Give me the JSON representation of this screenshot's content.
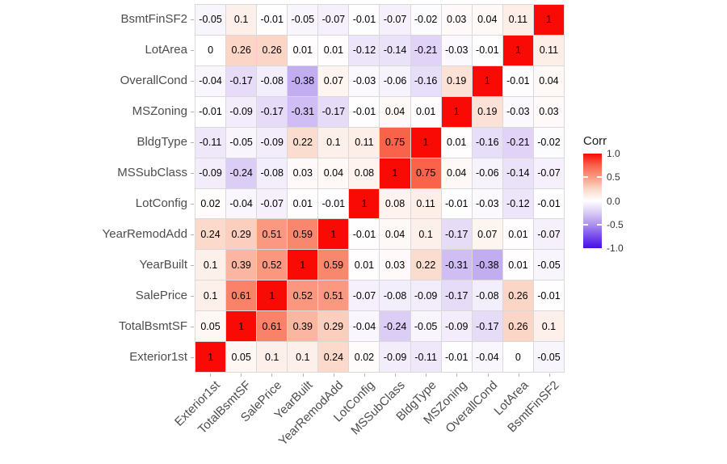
{
  "chart_data": {
    "type": "heatmap",
    "title": "",
    "legend": {
      "title": "Corr",
      "position": "right",
      "ticks": [
        "1.0",
        "0.5",
        "0.0",
        "-0.5",
        "-1.0"
      ],
      "min": -1.0,
      "max": 1.0,
      "color_high": "#fa0a05",
      "color_mid": "#ffffff",
      "color_low": "#470dea"
    },
    "x_categories": [
      "Exterior1st",
      "TotalBsmtSF",
      "SalePrice",
      "YearBuilt",
      "YearRemodAdd",
      "LotConfig",
      "MSSubClass",
      "BldgType",
      "MSZoning",
      "OverallCond",
      "LotArea",
      "BsmtFinSF2"
    ],
    "rows": [
      {
        "label": "BsmtFinSF2",
        "values": [
          "-0.05",
          "0.1",
          "-0.01",
          "-0.05",
          "-0.07",
          "-0.01",
          "-0.07",
          "-0.02",
          "0.03",
          "0.04",
          "0.11",
          "1"
        ]
      },
      {
        "label": "LotArea",
        "values": [
          "0",
          "0.26",
          "0.26",
          "0.01",
          "0.01",
          "-0.12",
          "-0.14",
          "-0.21",
          "-0.03",
          "-0.01",
          "1",
          "0.11"
        ]
      },
      {
        "label": "OverallCond",
        "values": [
          "-0.04",
          "-0.17",
          "-0.08",
          "-0.38",
          "0.07",
          "-0.03",
          "-0.06",
          "-0.16",
          "0.19",
          "1",
          "-0.01",
          "0.04"
        ]
      },
      {
        "label": "MSZoning",
        "values": [
          "-0.01",
          "-0.09",
          "-0.17",
          "-0.31",
          "-0.17",
          "-0.01",
          "0.04",
          "0.01",
          "1",
          "0.19",
          "-0.03",
          "0.03"
        ]
      },
      {
        "label": "BldgType",
        "values": [
          "-0.11",
          "-0.05",
          "-0.09",
          "0.22",
          "0.1",
          "0.11",
          "0.75",
          "1",
          "0.01",
          "-0.16",
          "-0.21",
          "-0.02"
        ]
      },
      {
        "label": "MSSubClass",
        "values": [
          "-0.09",
          "-0.24",
          "-0.08",
          "0.03",
          "0.04",
          "0.08",
          "1",
          "0.75",
          "0.04",
          "-0.06",
          "-0.14",
          "-0.07"
        ]
      },
      {
        "label": "LotConfig",
        "values": [
          "0.02",
          "-0.04",
          "-0.07",
          "0.01",
          "-0.01",
          "1",
          "0.08",
          "0.11",
          "-0.01",
          "-0.03",
          "-0.12",
          "-0.01"
        ]
      },
      {
        "label": "YearRemodAdd",
        "values": [
          "0.24",
          "0.29",
          "0.51",
          "0.59",
          "1",
          "-0.01",
          "0.04",
          "0.1",
          "-0.17",
          "0.07",
          "0.01",
          "-0.07"
        ]
      },
      {
        "label": "YearBuilt",
        "values": [
          "0.1",
          "0.39",
          "0.52",
          "1",
          "0.59",
          "0.01",
          "0.03",
          "0.22",
          "-0.31",
          "-0.38",
          "0.01",
          "-0.05"
        ]
      },
      {
        "label": "SalePrice",
        "values": [
          "0.1",
          "0.61",
          "1",
          "0.52",
          "0.51",
          "-0.07",
          "-0.08",
          "-0.09",
          "-0.17",
          "-0.08",
          "0.26",
          "-0.01"
        ]
      },
      {
        "label": "TotalBsmtSF",
        "values": [
          "0.05",
          "1",
          "0.61",
          "0.39",
          "0.29",
          "-0.04",
          "-0.24",
          "-0.05",
          "-0.09",
          "-0.17",
          "0.26",
          "0.1"
        ]
      },
      {
        "label": "Exterior1st",
        "values": [
          "1",
          "0.05",
          "0.1",
          "0.1",
          "0.24",
          "0.02",
          "-0.09",
          "-0.11",
          "-0.01",
          "-0.04",
          "0",
          "-0.05"
        ]
      }
    ]
  }
}
